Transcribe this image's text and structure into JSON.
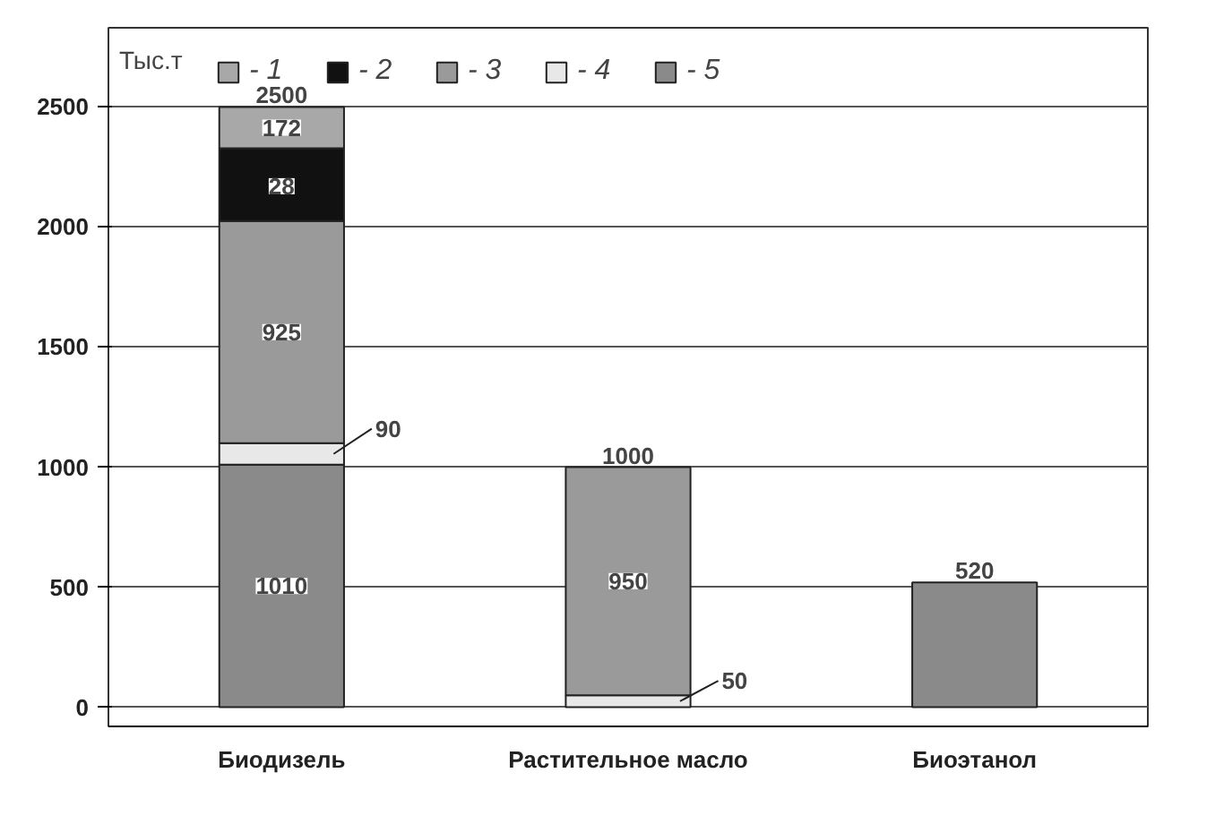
{
  "chart_data": {
    "type": "bar",
    "stacked": true,
    "ylabel": "Тыс.т",
    "categories": [
      "Биодизель",
      "Растительное масло",
      "Биоэтанол"
    ],
    "series": [
      {
        "name": "- 5",
        "color": "#8a8a8a",
        "values": [
          1010,
          0,
          520
        ],
        "value_labels": [
          "1010",
          null,
          null
        ]
      },
      {
        "name": "- 4",
        "color": "#e8e8e8",
        "values": [
          90,
          50,
          0
        ],
        "value_labels": [
          "90",
          "50",
          null
        ]
      },
      {
        "name": "- 3",
        "color": "#9a9a9a",
        "values": [
          925,
          950,
          0
        ],
        "value_labels": [
          "925",
          "950",
          null
        ]
      },
      {
        "name": "- 2",
        "color": "#111111",
        "values": [
          303,
          0,
          0
        ]
      },
      {
        "name": "- 1",
        "color": "#a8a8a8",
        "values": [
          172,
          0,
          0
        ],
        "value_labels": [
          "172",
          null,
          null
        ]
      }
    ],
    "annotations": [
      {
        "text": "28",
        "x": "Биодизель",
        "y": 2170
      }
    ],
    "totals": [
      "2500",
      "1000",
      "520"
    ],
    "ylim": [
      -80,
      2830
    ],
    "yticks": [
      0,
      500,
      1000,
      1500,
      2000,
      2500
    ],
    "grid": "y",
    "legend": "top left"
  }
}
